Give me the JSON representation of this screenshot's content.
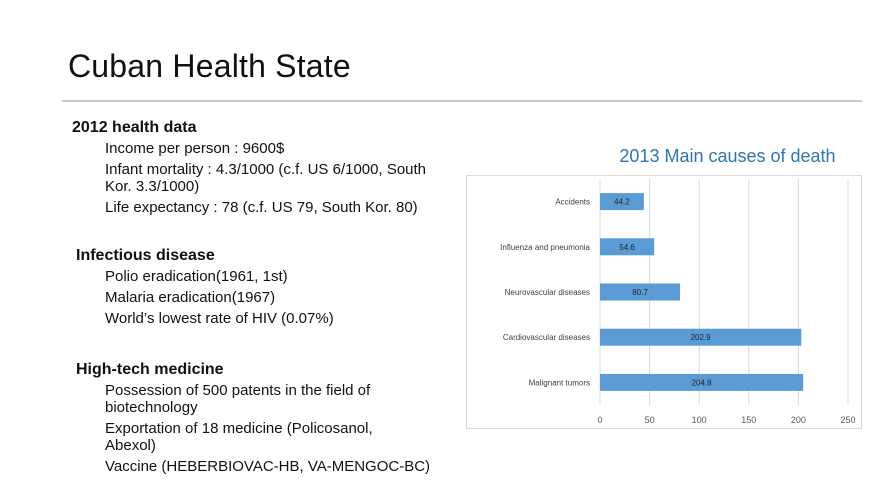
{
  "slide": {
    "title": "Cuban Health State"
  },
  "sections": [
    {
      "heading": "2012 health data",
      "items": [
        "Income per person : 9600$",
        "Infant mortality : 4.3/1000  (c.f. US 6/1000, South Kor. 3.3/1000)",
        "Life expectancy : 78 (c.f. US 79, South Kor. 80)"
      ]
    },
    {
      "heading": "Infectious disease",
      "items": [
        "Polio eradication(1961, 1st)",
        "Malaria eradication(1967)",
        "World’s lowest rate of HIV (0.07%)"
      ]
    },
    {
      "heading": "High-tech medicine",
      "items": [
        "Possession of  500 patents in the field of biotechnology",
        "Exportation of 18 medicine (Policosanol, Abexol)",
        "Vaccine (HEBERBIOVAC-HB, VA-MENGOC-BC)"
      ]
    }
  ],
  "chart_data": {
    "type": "bar",
    "orientation": "horizontal",
    "title": "2013 Main causes of death",
    "categories": [
      "Accidents",
      "Influenza and pneumonia",
      "Neurovascular diseases",
      "Cardiovascular diseases",
      "Malignant tumors"
    ],
    "values": [
      44.2,
      54.6,
      80.7,
      202.9,
      204.8
    ],
    "data_labels": [
      "44.2",
      "54.6",
      "80.7",
      "202.9",
      "204.8"
    ],
    "xlim": [
      0,
      250
    ],
    "xticks": [
      0,
      50,
      100,
      150,
      200,
      250
    ],
    "grid": true,
    "legend": "none",
    "bar_color": "#5b9bd5",
    "title_color": "#2e75b6"
  }
}
